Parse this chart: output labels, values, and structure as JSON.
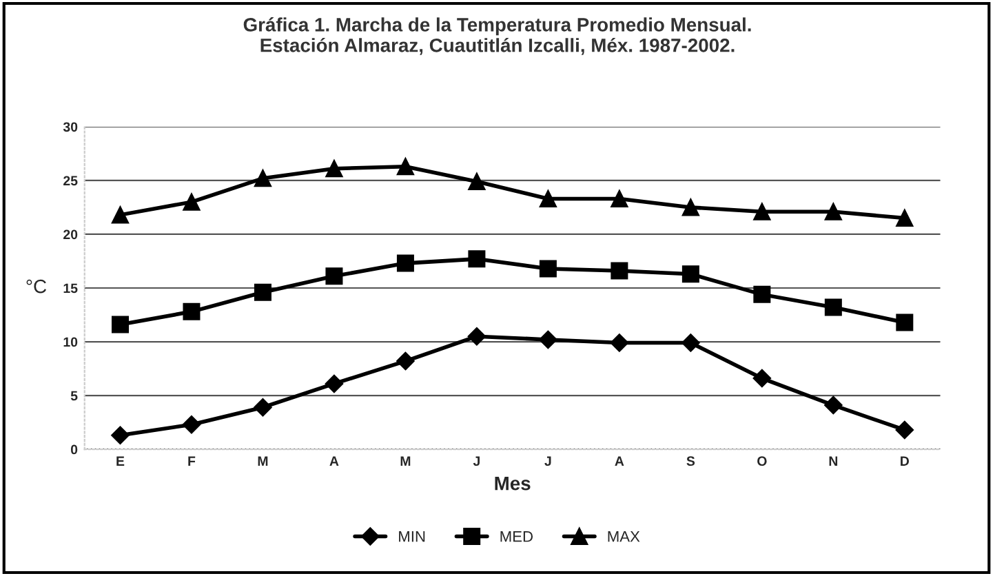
{
  "chart_data": {
    "type": "line",
    "title": "Gráfica 1. Marcha de la Temperatura Promedio Mensual.\nEstación Almaraz, Cuautitlán Izcalli, Méx. 1987-2002.",
    "xlabel": "Mes",
    "ylabel": "°C",
    "categories": [
      "E",
      "F",
      "M",
      "A",
      "M",
      "J",
      "J",
      "A",
      "S",
      "O",
      "N",
      "D"
    ],
    "series": [
      {
        "name": "MIN",
        "color": "#000000",
        "marker": "diamond",
        "values": [
          1.3,
          2.3,
          3.9,
          6.1,
          8.2,
          10.5,
          10.2,
          9.9,
          9.9,
          6.6,
          4.1,
          1.8
        ]
      },
      {
        "name": "MED",
        "color": "#000000",
        "marker": "square",
        "values": [
          11.6,
          12.8,
          14.6,
          16.1,
          17.3,
          17.7,
          16.8,
          16.6,
          16.3,
          14.4,
          13.2,
          11.8
        ]
      },
      {
        "name": "MAX",
        "color": "#000000",
        "marker": "triangle",
        "values": [
          21.8,
          23.0,
          25.2,
          26.1,
          26.3,
          24.9,
          23.3,
          23.3,
          22.5,
          22.1,
          22.1,
          21.5
        ]
      }
    ],
    "ylim": [
      0,
      30
    ],
    "yticks": [
      0,
      5,
      10,
      15,
      20,
      25,
      30
    ],
    "grid": "y",
    "legend": "bottom"
  }
}
